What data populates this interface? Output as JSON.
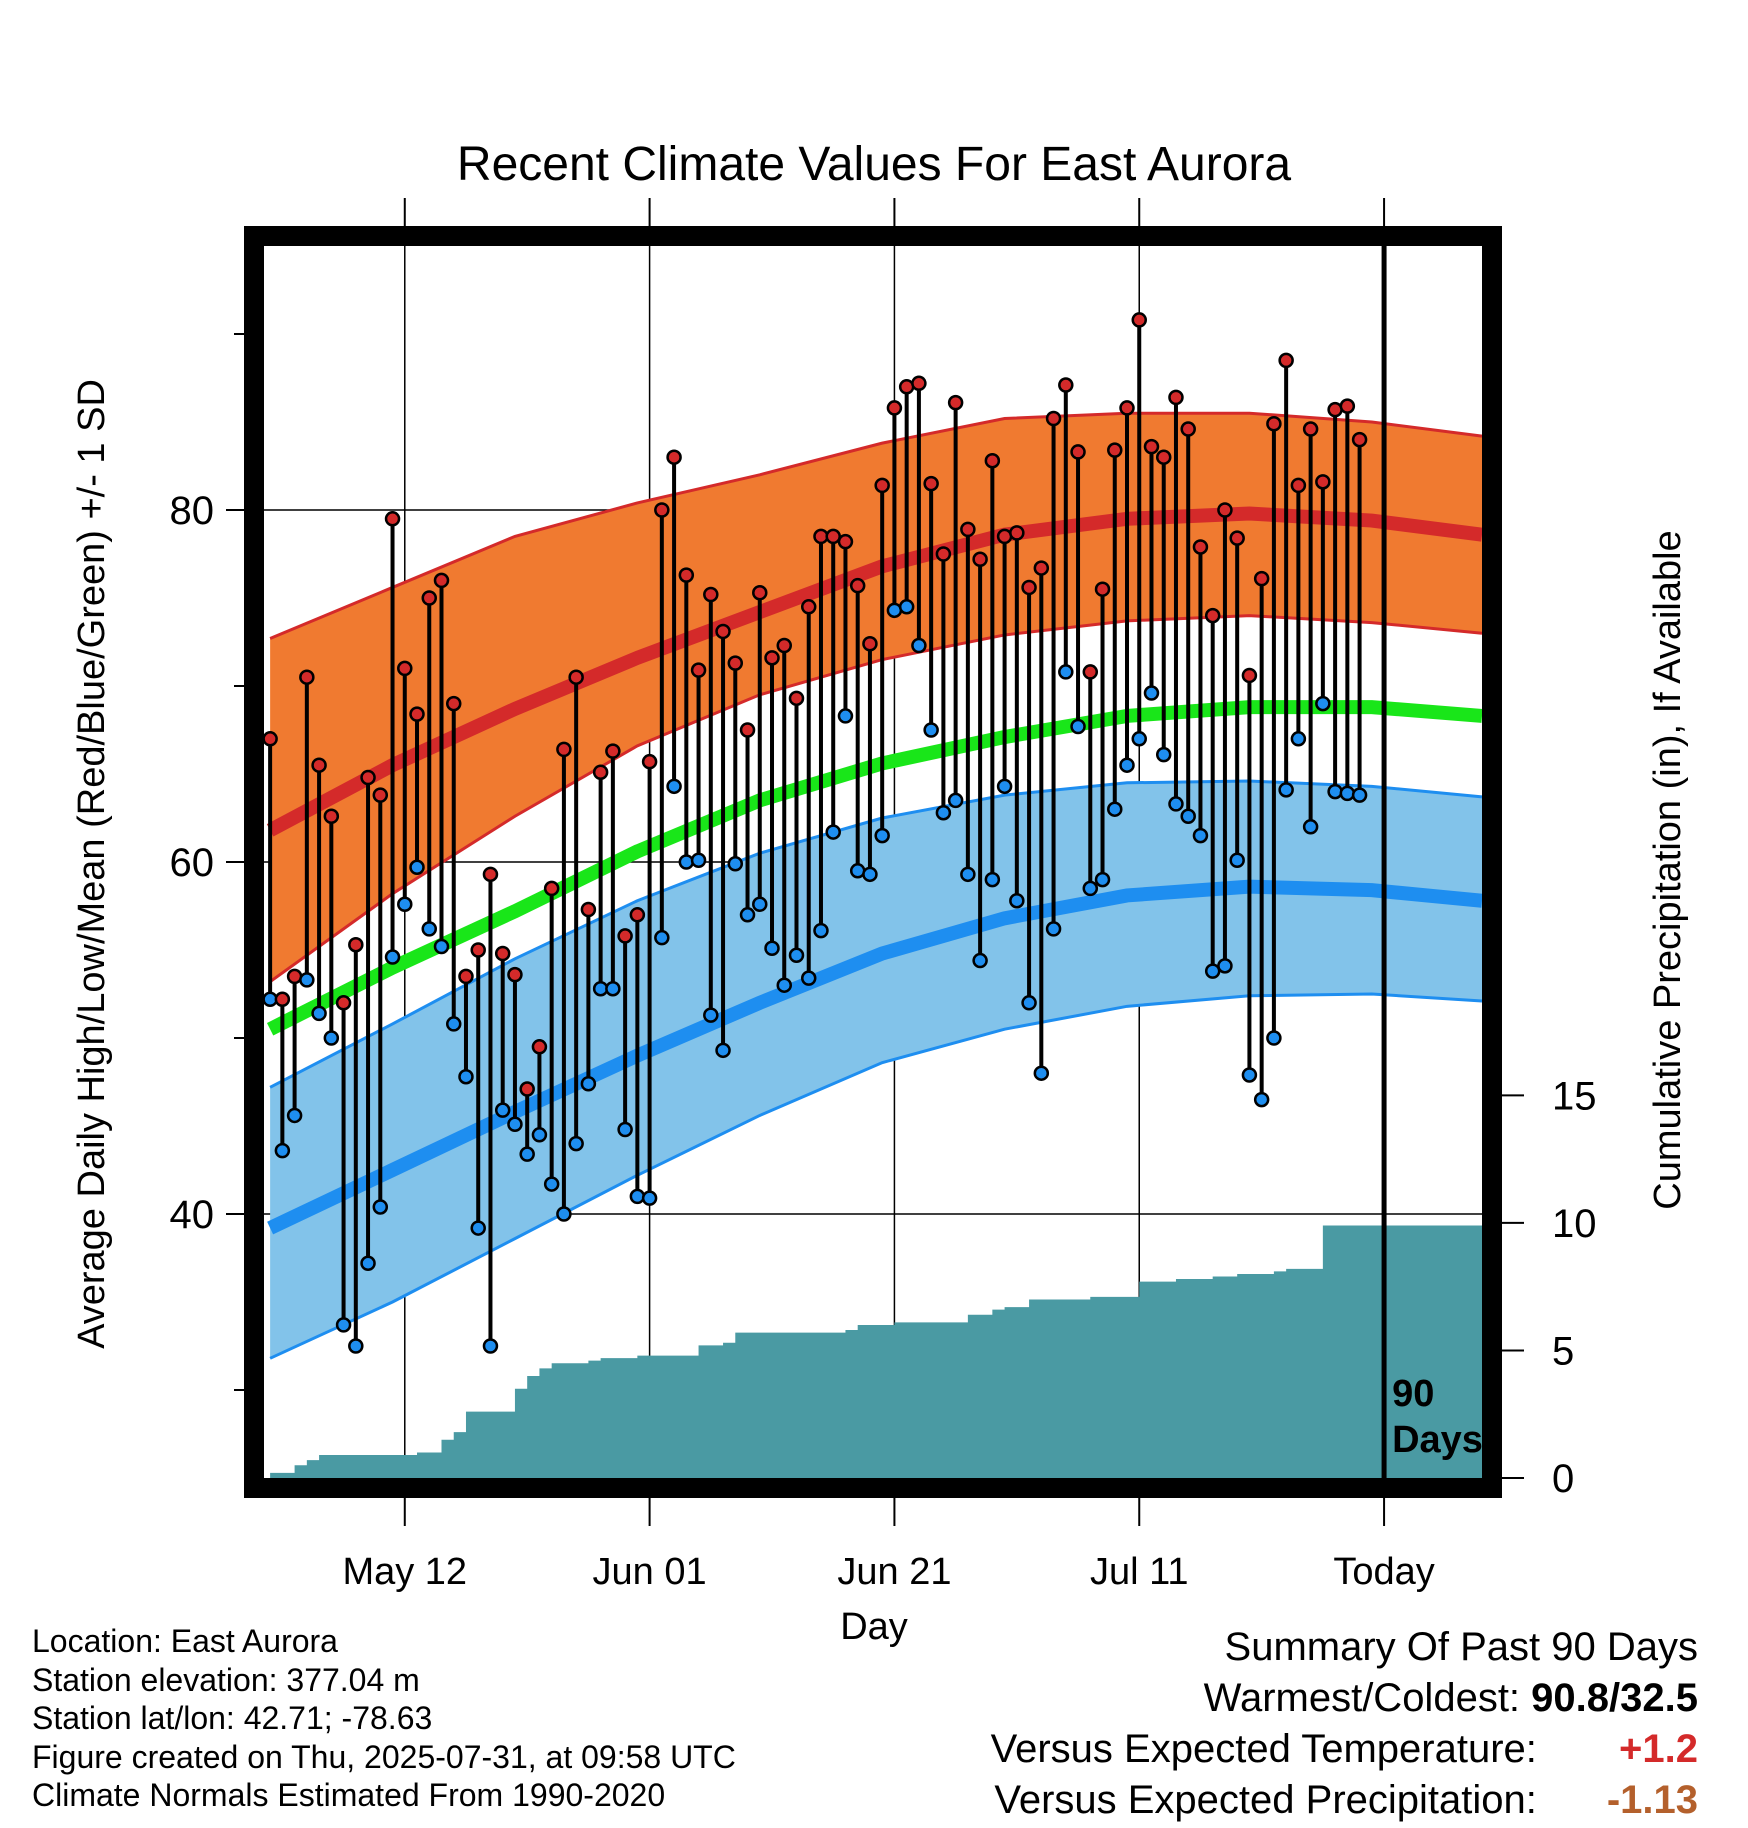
{
  "title": "Recent Climate Values For East Aurora",
  "ylabel_left": "Average Daily High/Low/Mean (Red/Blue/Green) +/- 1 SD",
  "ylabel_right": "Cumulative Precipitation (in), If Available",
  "xlabel": "Day",
  "today_marker": {
    "label": "Today",
    "box_line1": "90",
    "box_line2": "Days"
  },
  "colors": {
    "high_band": "#f07a30",
    "high_line": "#d42a2a",
    "mean_line": "#19e619",
    "low_band": "#82c3ea",
    "low_line": "#1e8ef0",
    "precip_fill": "#4a9aa3",
    "high_dot": "#d42a2a",
    "low_dot": "#1e8ef0"
  },
  "info": {
    "location": "Location: East Aurora",
    "elevation": "Station elevation: 377.04 m",
    "latlon": "Station lat/lon: 42.71; -78.63",
    "created": "Figure created on Thu, 2025-07-31, at 09:58 UTC",
    "normals": "Climate Normals Estimated From 1990-2020"
  },
  "summary": {
    "heading": "Summary Of Past 90 Days",
    "warm_cold_label": "Warmest/Coldest:",
    "warm_cold_value": "90.8/32.5",
    "temp_label": "Versus Expected Temperature:",
    "temp_value": "+1.2",
    "precip_label": "Versus Expected Precipitation:",
    "precip_value": "-1.13"
  },
  "chart_data": {
    "type": "line",
    "x_unit": "day index (0 = May 1, 2025; 90 = Jul 30, 2025 = Today)",
    "xlim": [
      -0.5,
      99
    ],
    "x_ticks": [
      {
        "day": 11,
        "label": "May 12"
      },
      {
        "day": 31,
        "label": "Jun 01"
      },
      {
        "day": 51,
        "label": "Jun 21"
      },
      {
        "day": 71,
        "label": "Jul 11"
      },
      {
        "day": 91,
        "label": "Today"
      }
    ],
    "ylim_left": [
      25,
      95
    ],
    "y_ticks_left_major": [
      40,
      60,
      80
    ],
    "y_ticks_left_minor": [
      30,
      50,
      70,
      90
    ],
    "ylim_right": [
      0,
      48.3
    ],
    "y_ticks_right": [
      0,
      5,
      10,
      15
    ],
    "normals": {
      "days": [
        0,
        10,
        20,
        30,
        40,
        50,
        60,
        70,
        80,
        90,
        99
      ],
      "high_upper": [
        72.7,
        75.6,
        78.5,
        80.4,
        82.0,
        83.8,
        85.2,
        85.5,
        85.5,
        85.0,
        84.2
      ],
      "high_mean": [
        61.8,
        65.5,
        68.7,
        71.6,
        74.2,
        76.8,
        78.6,
        79.5,
        79.8,
        79.4,
        78.6
      ],
      "high_lower": [
        53.2,
        58.2,
        62.6,
        66.6,
        69.5,
        71.5,
        72.9,
        73.7,
        74.0,
        73.6,
        73.0
      ],
      "mean": [
        50.5,
        54.0,
        57.2,
        60.6,
        63.5,
        65.6,
        67.1,
        68.3,
        68.8,
        68.8,
        68.3
      ],
      "low_upper": [
        47.2,
        50.8,
        54.5,
        57.8,
        60.5,
        62.5,
        63.8,
        64.5,
        64.6,
        64.3,
        63.7
      ],
      "low_mean": [
        39.2,
        42.5,
        45.8,
        49.0,
        52.0,
        54.8,
        56.8,
        58.1,
        58.6,
        58.4,
        57.8
      ],
      "low_lower": [
        31.8,
        35.0,
        38.6,
        42.2,
        45.6,
        48.6,
        50.5,
        51.8,
        52.4,
        52.5,
        52.1
      ]
    },
    "observed_days": [
      0,
      1,
      2,
      3,
      4,
      5,
      6,
      7,
      8,
      9,
      10,
      11,
      12,
      13,
      14,
      15,
      16,
      17,
      18,
      19,
      20,
      21,
      22,
      23,
      24,
      25,
      26,
      27,
      28,
      29,
      30,
      31,
      32,
      33,
      34,
      35,
      36,
      37,
      38,
      39,
      40,
      41,
      42,
      43,
      44,
      45,
      46,
      47,
      48,
      49,
      50,
      51,
      52,
      53,
      54,
      55,
      56,
      57,
      58,
      59,
      60,
      61,
      62,
      63,
      64,
      65,
      66,
      67,
      68,
      69,
      70,
      71,
      72,
      73,
      74,
      75,
      76,
      77,
      78,
      79,
      80,
      81,
      82,
      83,
      84,
      85,
      86,
      87,
      88,
      89
    ],
    "daily_high": [
      67.0,
      52.2,
      53.5,
      70.5,
      65.5,
      62.6,
      52.0,
      55.3,
      64.8,
      63.8,
      79.5,
      71.0,
      68.4,
      75.0,
      76.0,
      69.0,
      53.5,
      55.0,
      59.3,
      54.8,
      53.6,
      47.1,
      49.5,
      58.5,
      66.4,
      70.5,
      57.3,
      65.1,
      66.3,
      55.8,
      57.0,
      65.7,
      80.0,
      83.0,
      76.3,
      70.9,
      75.2,
      73.1,
      71.3,
      67.5,
      75.3,
      71.6,
      72.3,
      69.3,
      74.5,
      78.5,
      78.5,
      78.2,
      75.7,
      72.4,
      81.4,
      85.8,
      87.0,
      87.2,
      81.5,
      77.5,
      86.1,
      78.9,
      77.2,
      82.8,
      78.5,
      78.7,
      75.6,
      76.7,
      85.2,
      87.1,
      83.3,
      70.8,
      75.5,
      83.4,
      85.8,
      90.8,
      83.6,
      83.0,
      86.4,
      84.6,
      77.9,
      74.0,
      80.0,
      78.4,
      70.6,
      76.1,
      84.9,
      88.5,
      81.4,
      84.6,
      81.6,
      85.7,
      85.9,
      84.0
    ],
    "daily_low": [
      52.2,
      43.6,
      45.6,
      53.3,
      51.4,
      50.0,
      33.7,
      32.5,
      37.2,
      40.4,
      54.6,
      57.6,
      59.7,
      56.2,
      55.2,
      50.8,
      47.8,
      39.2,
      32.5,
      45.9,
      45.1,
      43.4,
      44.5,
      41.7,
      40.0,
      44.0,
      47.4,
      52.8,
      52.8,
      44.8,
      41.0,
      40.9,
      55.7,
      64.3,
      60.0,
      60.1,
      51.3,
      49.3,
      59.9,
      57.0,
      57.6,
      55.1,
      53.0,
      54.7,
      53.4,
      56.1,
      61.7,
      68.3,
      59.5,
      59.3,
      61.5,
      74.3,
      74.5,
      72.3,
      67.5,
      62.8,
      63.5,
      59.3,
      54.4,
      59.0,
      64.3,
      57.8,
      52.0,
      48.0,
      56.2,
      70.8,
      67.7,
      58.5,
      59.0,
      63.0,
      65.5,
      67.0,
      69.6,
      66.1,
      63.3,
      62.6,
      61.5,
      53.8,
      54.1,
      60.1,
      47.9,
      46.5,
      50.0,
      64.1,
      67.0,
      62.0,
      69.0,
      64.0,
      63.9,
      63.8
    ],
    "precip_cumulative": {
      "days": [
        0,
        2,
        3,
        4,
        5,
        6,
        7,
        8,
        9,
        10,
        11,
        12,
        13,
        14,
        15,
        16,
        17,
        18,
        19,
        20,
        21,
        22,
        23,
        24,
        25,
        26,
        27,
        28,
        29,
        30,
        31,
        32,
        33,
        34,
        35,
        36,
        37,
        38,
        39,
        40,
        41,
        42,
        43,
        44,
        45,
        46,
        47,
        48,
        49,
        50,
        51,
        52,
        53,
        54,
        55,
        56,
        57,
        58,
        59,
        60,
        61,
        62,
        63,
        64,
        65,
        66,
        67,
        68,
        69,
        70,
        71,
        72,
        73,
        74,
        75,
        76,
        77,
        78,
        79,
        80,
        81,
        82,
        83,
        84,
        85,
        86,
        87,
        88,
        89,
        90,
        99
      ],
      "values": [
        0.2,
        0.5,
        0.7,
        0.9,
        0.9,
        0.9,
        0.9,
        0.9,
        0.9,
        0.9,
        0.9,
        1.0,
        1.0,
        1.5,
        1.8,
        2.6,
        2.6,
        2.6,
        2.6,
        3.5,
        4.0,
        4.3,
        4.5,
        4.5,
        4.5,
        4.6,
        4.7,
        4.7,
        4.7,
        4.8,
        4.8,
        4.8,
        4.8,
        4.8,
        5.2,
        5.2,
        5.3,
        5.7,
        5.7,
        5.7,
        5.7,
        5.7,
        5.7,
        5.7,
        5.7,
        5.7,
        5.8,
        6.0,
        6.0,
        6.0,
        6.1,
        6.1,
        6.1,
        6.1,
        6.1,
        6.1,
        6.4,
        6.4,
        6.6,
        6.7,
        6.7,
        7.0,
        7.0,
        7.0,
        7.0,
        7.0,
        7.1,
        7.1,
        7.1,
        7.1,
        7.7,
        7.7,
        7.7,
        7.8,
        7.8,
        7.8,
        7.9,
        7.9,
        8.0,
        8.0,
        8.0,
        8.1,
        8.2,
        8.2,
        8.2,
        9.9,
        9.9,
        9.9,
        9.9,
        9.9,
        9.9
      ]
    }
  }
}
